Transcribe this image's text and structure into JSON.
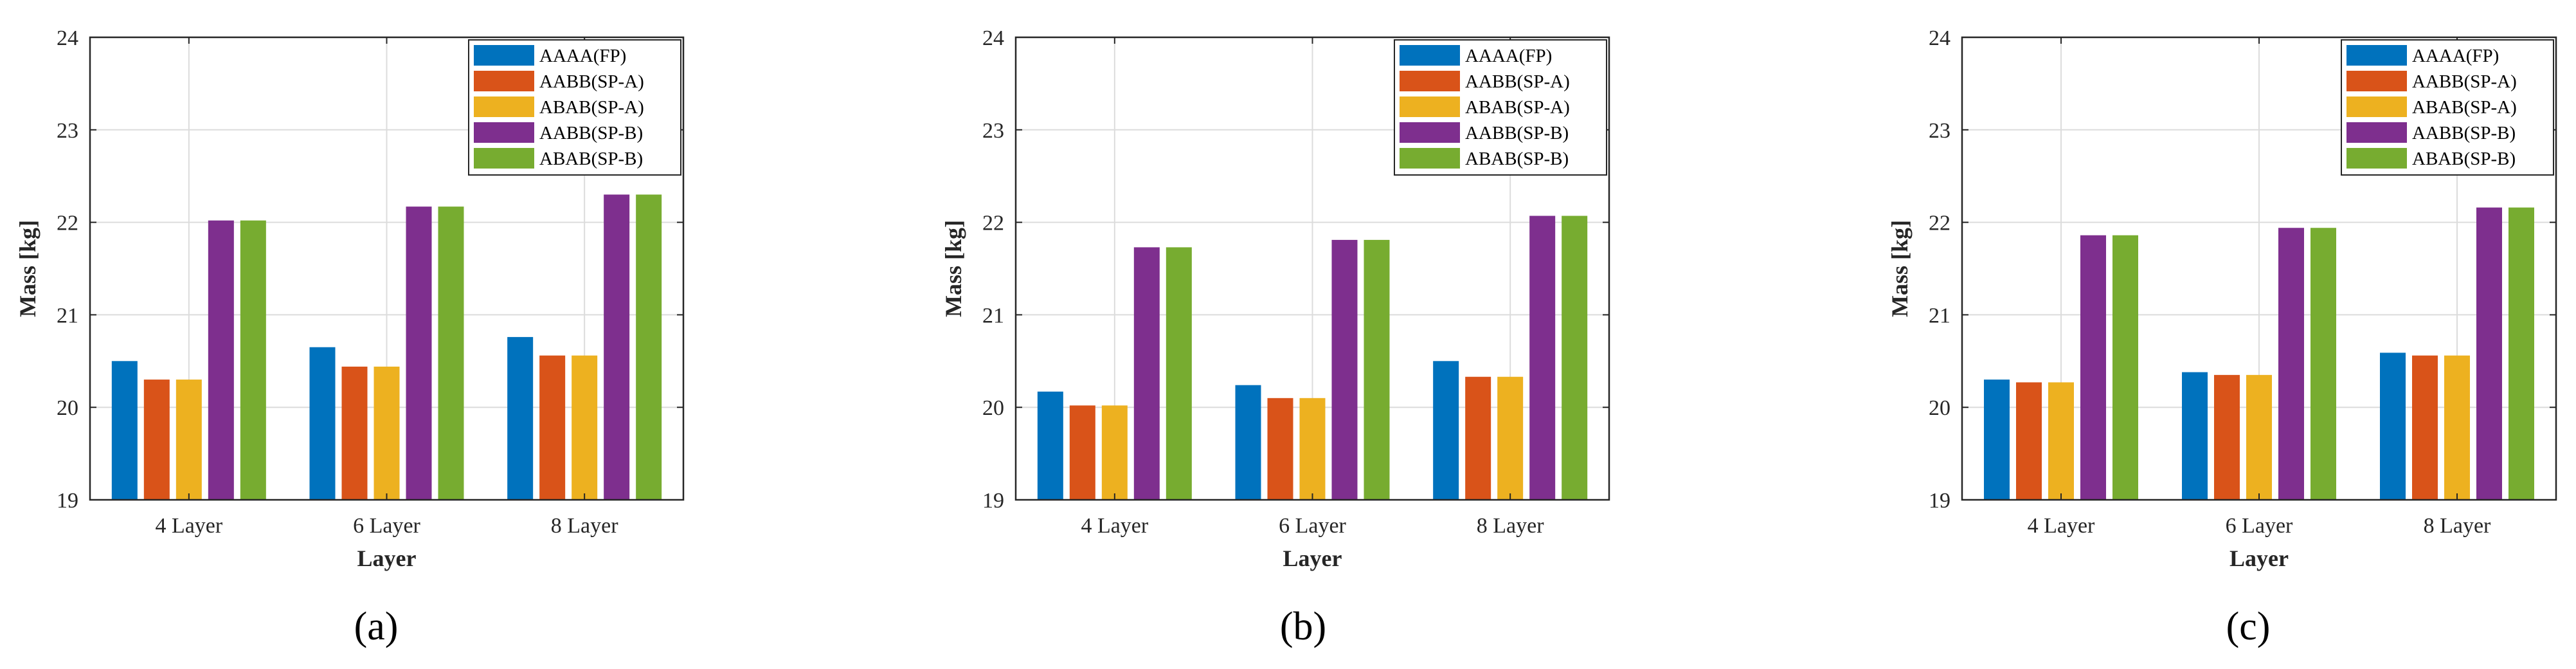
{
  "chart_data": [
    {
      "type": "bar",
      "panel_label": "a",
      "caption_open": "(",
      "caption_close": ")",
      "categories": [
        "4 Layer",
        "6 Layer",
        "8 Layer"
      ],
      "series": [
        {
          "name": "AAAA(FP)",
          "color": "#0072BD",
          "values": [
            20.5,
            20.65,
            20.76
          ]
        },
        {
          "name": "AABB(SP-A)",
          "color": "#D95319",
          "values": [
            20.3,
            20.44,
            20.56
          ]
        },
        {
          "name": "ABAB(SP-A)",
          "color": "#EDB120",
          "values": [
            20.3,
            20.44,
            20.56
          ]
        },
        {
          "name": "AABB(SP-B)",
          "color": "#7E2F8E",
          "values": [
            22.02,
            22.17,
            22.3
          ]
        },
        {
          "name": "ABAB(SP-B)",
          "color": "#77AC30",
          "values": [
            22.02,
            22.17,
            22.3
          ]
        }
      ],
      "xlabel": "Layer",
      "ylabel": "Mass [kg]",
      "ylim": [
        19,
        24
      ],
      "yticks": [
        "19",
        "20",
        "21",
        "22",
        "23",
        "24"
      ],
      "grid": true,
      "legend_position": "top-right"
    },
    {
      "type": "bar",
      "panel_label": "b",
      "caption_open": "(",
      "caption_close": ")",
      "categories": [
        "4 Layer",
        "6 Layer",
        "8 Layer"
      ],
      "series": [
        {
          "name": "AAAA(FP)",
          "color": "#0072BD",
          "values": [
            20.17,
            20.24,
            20.5
          ]
        },
        {
          "name": "AABB(SP-A)",
          "color": "#D95319",
          "values": [
            20.02,
            20.1,
            20.33
          ]
        },
        {
          "name": "ABAB(SP-A)",
          "color": "#EDB120",
          "values": [
            20.02,
            20.1,
            20.33
          ]
        },
        {
          "name": "AABB(SP-B)",
          "color": "#7E2F8E",
          "values": [
            21.73,
            21.81,
            22.07
          ]
        },
        {
          "name": "ABAB(SP-B)",
          "color": "#77AC30",
          "values": [
            21.73,
            21.81,
            22.07
          ]
        }
      ],
      "xlabel": "Layer",
      "ylabel": "Mass [kg]",
      "ylim": [
        19,
        24
      ],
      "yticks": [
        "19",
        "20",
        "21",
        "22",
        "23",
        "24"
      ],
      "grid": true,
      "legend_position": "top-right"
    },
    {
      "type": "bar",
      "panel_label": "c",
      "caption_open": "(",
      "caption_close": ")",
      "categories": [
        "4 Layer",
        "6 Layer",
        "8 Layer"
      ],
      "series": [
        {
          "name": "AAAA(FP)",
          "color": "#0072BD",
          "values": [
            20.3,
            20.38,
            20.59
          ]
        },
        {
          "name": "AABB(SP-A)",
          "color": "#D95319",
          "values": [
            20.27,
            20.35,
            20.56
          ]
        },
        {
          "name": "ABAB(SP-A)",
          "color": "#EDB120",
          "values": [
            20.27,
            20.35,
            20.56
          ]
        },
        {
          "name": "AABB(SP-B)",
          "color": "#7E2F8E",
          "values": [
            21.86,
            21.94,
            22.16
          ]
        },
        {
          "name": "ABAB(SP-B)",
          "color": "#77AC30",
          "values": [
            21.86,
            21.94,
            22.16
          ]
        }
      ],
      "xlabel": "Layer",
      "ylabel": "Mass [kg]",
      "ylim": [
        19,
        24
      ],
      "yticks": [
        "19",
        "20",
        "21",
        "22",
        "23",
        "24"
      ],
      "grid": true,
      "legend_position": "top-right"
    }
  ]
}
